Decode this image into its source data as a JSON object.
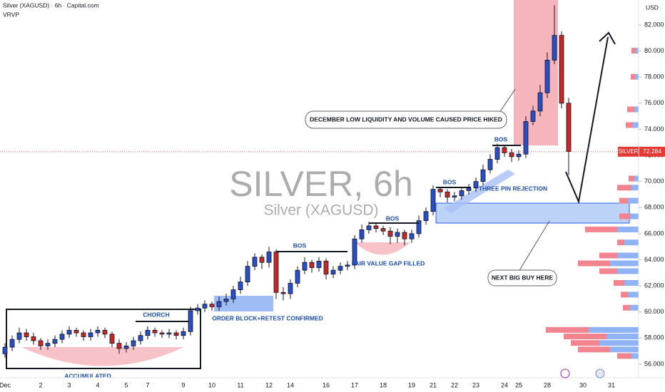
{
  "chart_data": {
    "type": "candlestick",
    "title": "Silver (XAGUSD) · 6h · Capital.com",
    "indicator": "VRVP",
    "currency": "USD",
    "watermark": "SILVER, 6h",
    "watermark_subtitle": "Silver (XAGUSD)",
    "up_color": "#2a4fc4",
    "down_color": "#c62828",
    "categories": [
      "Dec",
      null,
      null,
      null,
      null,
      "2",
      null,
      null,
      null,
      "3",
      null,
      null,
      null,
      "4",
      null,
      null,
      null,
      "5",
      null,
      null,
      "7",
      null,
      null,
      null,
      null,
      "9",
      null,
      null,
      null,
      "10",
      null,
      null,
      null,
      "11",
      null,
      null,
      null,
      "12",
      null,
      null,
      "14",
      null,
      null,
      null,
      null,
      "16",
      null,
      null,
      null,
      "17",
      null,
      null,
      null,
      "18",
      null,
      null,
      null,
      "19",
      null,
      null,
      "21",
      null,
      null,
      "22",
      null,
      null,
      "23",
      null,
      null,
      null,
      "24",
      null,
      "25",
      null,
      null,
      null,
      "28",
      null,
      null,
      null,
      null,
      "30",
      null,
      null,
      null,
      "31"
    ],
    "open": [
      56.8,
      57.3,
      57.9,
      58.4,
      58.1,
      57.8,
      57.4,
      57.6,
      57.9,
      58.3,
      58.6,
      58.4,
      58.1,
      58.4,
      58.6,
      58.3,
      57.6,
      57.2,
      57.4,
      57.8,
      58.2,
      58.6,
      58.4,
      58.3,
      58.4,
      58.2,
      58.5,
      60.1,
      60.3,
      60.6,
      60.4,
      60.8,
      61.0,
      61.7,
      62.3,
      63.5,
      64.2,
      63.8,
      64.6,
      61.5,
      61.4,
      62.2,
      63.2,
      63.8,
      63.4,
      63.9,
      62.9,
      63.2,
      63.5,
      63.6,
      65.6,
      66.3,
      66.6,
      66.4,
      66.2,
      65.8,
      66.1,
      65.6,
      66.0,
      67.0,
      67.7,
      69.4,
      69.2,
      68.8,
      68.9,
      69.3,
      69.5,
      70.0,
      70.9,
      71.7,
      72.6,
      72.2,
      71.9,
      72.1,
      74.6,
      75.4,
      76.8,
      79.3,
      81.2,
      76.0,
      null,
      null,
      null,
      null,
      null,
      null
    ],
    "high": [
      57.6,
      58.2,
      58.8,
      58.7,
      58.4,
      58.0,
      57.9,
      58.2,
      58.6,
      58.9,
      58.8,
      58.6,
      58.7,
      58.9,
      58.8,
      58.5,
      57.9,
      57.7,
      58.1,
      58.5,
      58.9,
      58.8,
      58.6,
      58.7,
      58.6,
      58.8,
      60.4,
      60.6,
      60.9,
      60.8,
      61.2,
      61.4,
      62.0,
      62.7,
      63.9,
      64.5,
      64.4,
      65.0,
      64.8,
      61.9,
      62.5,
      63.5,
      64.2,
      64.0,
      64.2,
      64.1,
      63.5,
      63.8,
      63.9,
      65.9,
      66.7,
      66.9,
      66.8,
      66.6,
      66.5,
      66.4,
      66.3,
      66.3,
      67.4,
      68.0,
      69.7,
      69.6,
      69.4,
      69.2,
      69.6,
      69.8,
      70.3,
      71.3,
      72.1,
      72.9,
      72.8,
      72.5,
      72.4,
      75.0,
      75.8,
      77.4,
      79.9,
      83.5,
      81.5,
      76.4,
      null,
      null,
      null,
      null,
      null,
      null
    ],
    "low": [
      56.5,
      57.0,
      57.6,
      57.8,
      57.5,
      57.1,
      57.1,
      57.3,
      57.6,
      58.0,
      58.1,
      57.8,
      57.8,
      58.1,
      58.0,
      57.3,
      56.8,
      56.9,
      57.1,
      57.5,
      57.9,
      58.1,
      58.0,
      58.0,
      57.9,
      57.9,
      58.2,
      59.8,
      60.0,
      60.1,
      60.1,
      60.5,
      60.7,
      61.4,
      62.0,
      63.2,
      63.3,
      63.4,
      61.0,
      60.9,
      61.0,
      61.9,
      62.9,
      63.0,
      63.1,
      62.5,
      62.6,
      62.9,
      63.2,
      63.3,
      65.3,
      66.0,
      66.1,
      65.9,
      65.2,
      65.3,
      65.1,
      65.3,
      65.7,
      66.7,
      67.4,
      68.8,
      68.4,
      68.5,
      68.6,
      69.0,
      69.2,
      69.7,
      70.6,
      71.4,
      71.9,
      71.5,
      71.6,
      71.8,
      74.3,
      75.0,
      76.4,
      79.0,
      75.6,
      70.5,
      null,
      null,
      null,
      null,
      null,
      null
    ],
    "close": [
      57.3,
      57.9,
      58.4,
      58.1,
      57.8,
      57.4,
      57.6,
      57.9,
      58.3,
      58.6,
      58.4,
      58.1,
      58.4,
      58.6,
      58.3,
      57.6,
      57.2,
      57.4,
      57.8,
      58.2,
      58.6,
      58.4,
      58.3,
      58.4,
      58.2,
      58.5,
      60.1,
      60.3,
      60.6,
      60.4,
      60.8,
      61.0,
      61.7,
      62.3,
      63.5,
      64.2,
      63.8,
      64.6,
      61.5,
      61.4,
      62.2,
      63.2,
      63.8,
      63.4,
      63.9,
      62.9,
      63.2,
      63.5,
      63.6,
      65.6,
      66.3,
      66.6,
      66.4,
      66.2,
      65.8,
      66.1,
      65.6,
      66.0,
      67.0,
      67.7,
      69.4,
      69.2,
      68.8,
      68.9,
      69.3,
      69.5,
      70.0,
      70.9,
      71.7,
      72.6,
      72.2,
      71.9,
      72.1,
      74.6,
      75.4,
      76.8,
      79.3,
      81.2,
      76.0,
      72.3,
      null,
      null,
      null,
      null,
      null,
      null
    ],
    "ylim": [
      54.96,
      83.91
    ],
    "yticks": [
      {
        "value": 56,
        "label": "56.000"
      },
      {
        "value": 58,
        "label": "58.000"
      },
      {
        "value": 60,
        "label": "60.000"
      },
      {
        "value": 62,
        "label": "62.000"
      },
      {
        "value": 64,
        "label": "64.000"
      },
      {
        "value": 66,
        "label": "66.000"
      },
      {
        "value": 68,
        "label": "68.000"
      },
      {
        "value": 70,
        "label": "70.000"
      },
      {
        "value": 72,
        "label": "72.000"
      },
      {
        "value": 74,
        "label": "74.000"
      },
      {
        "value": 76,
        "label": "76.000"
      },
      {
        "value": 78,
        "label": "78.000"
      },
      {
        "value": 80,
        "label": "80.000"
      },
      {
        "value": 82,
        "label": "82.000"
      }
    ],
    "last_price": {
      "name": "SILVER",
      "value": 72.284,
      "color": "#e53935"
    },
    "volume_profile": {
      "buy_color": "#8fb3f5",
      "sell_color": "#f2848f",
      "price": [
        56.6,
        57.1,
        57.6,
        58.1,
        58.6,
        60.3,
        61.3,
        62.2,
        63.1,
        63.7,
        64.3,
        65.3,
        66.3,
        67.3,
        68.5,
        69.5,
        70.2,
        72.2,
        74.3,
        75.5,
        78.0,
        80.0
      ],
      "buy": [
        10,
        40,
        55,
        45,
        70,
        12,
        15,
        20,
        30,
        40,
        30,
        20,
        30,
        12,
        15,
        10,
        6,
        10,
        8,
        6,
        5,
        4
      ],
      "sell": [
        20,
        45,
        40,
        60,
        60,
        10,
        10,
        15,
        25,
        45,
        25,
        10,
        45,
        15,
        12,
        20,
        8,
        15,
        10,
        10,
        6,
        6
      ]
    },
    "annotations": [
      "DECEMBER LOW LIQUIDITY AND VOLUME CAUSED PRICE HIKED",
      "BOS",
      "BOS",
      "BOS",
      "BOS",
      "THREE PIN REJECTION",
      "FAIR VALUE GAP FILLED",
      "ORDER BLOCK+RETEST CONFIRMED",
      "CHORCH",
      "ACCUMULATED",
      "NEXT BIG BUY HERE"
    ]
  }
}
